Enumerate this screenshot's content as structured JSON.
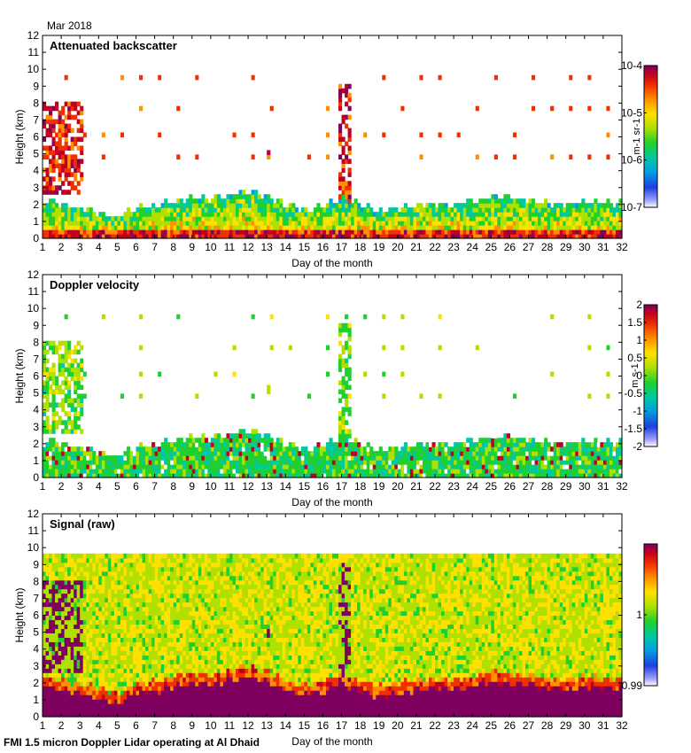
{
  "header": {
    "month_label": "Mar 2018"
  },
  "footer": {
    "caption": "FMI 1.5 micron Doppler Lidar operating at Al Dhaid"
  },
  "colors": {
    "colormap": [
      "#ffffff",
      "#9f9fff",
      "#1f3fdf",
      "#00a0e0",
      "#00c8a0",
      "#20d030",
      "#b0e000",
      "#ffe000",
      "#ff9000",
      "#f03000",
      "#c00020",
      "#800060"
    ]
  },
  "chart_data": [
    {
      "type": "heatmap",
      "title": "Attenuated backscatter",
      "xlabel": "Day of the month",
      "ylabel": "Height (km)",
      "xlim": [
        1,
        32
      ],
      "ylim": [
        0,
        12
      ],
      "xticks": [
        "1",
        "2",
        "3",
        "4",
        "5",
        "6",
        "7",
        "8",
        "9",
        "10",
        "11",
        "12",
        "13",
        "14",
        "15",
        "16",
        "17",
        "18",
        "19",
        "20",
        "21",
        "22",
        "23",
        "24",
        "25",
        "26",
        "27",
        "28",
        "29",
        "30",
        "31",
        "32"
      ],
      "yticks": [
        "0",
        "1",
        "2",
        "3",
        "4",
        "5",
        "6",
        "7",
        "8",
        "9",
        "10",
        "11",
        "12"
      ],
      "colorbar": {
        "scale": "log",
        "range": [
          1e-07,
          0.0001
        ],
        "tick_labels": [
          "10-4",
          "10-5",
          "10-6",
          "10-7"
        ],
        "unit": "m-1 sr-1"
      },
      "boundary_layer_top_km_by_day": [
        2.3,
        2.0,
        1.8,
        1.5,
        1.2,
        1.8,
        1.9,
        2.2,
        2.4,
        2.3,
        2.6,
        2.8,
        2.5,
        2.0,
        1.7,
        1.9,
        2.4,
        2.0,
        1.6,
        1.8,
        2.0,
        2.1,
        2.0,
        2.2,
        2.5,
        2.4,
        2.3,
        2.1,
        2.0,
        2.2,
        2.1
      ],
      "elevated_layers": [
        {
          "day_start": 1.0,
          "day_end": 3.1,
          "height_km": [
            2.5,
            8.2
          ],
          "intensity": "high"
        },
        {
          "day_start": 13.0,
          "day_end": 13.2,
          "height_km": [
            4.8,
            5.4
          ],
          "intensity": "high"
        },
        {
          "day_start": 16.8,
          "day_end": 17.5,
          "height_km": [
            1.5,
            9.2
          ],
          "intensity": "high"
        }
      ],
      "sparse_echo_heights_km": [
        9.5,
        7.6,
        6.2,
        4.7
      ]
    },
    {
      "type": "heatmap",
      "title": "Doppler velocity",
      "xlabel": "Day of the month",
      "ylabel": "Height (km)",
      "xlim": [
        1,
        32
      ],
      "ylim": [
        0,
        12
      ],
      "xticks": [
        "1",
        "2",
        "3",
        "4",
        "5",
        "6",
        "7",
        "8",
        "9",
        "10",
        "11",
        "12",
        "13",
        "14",
        "15",
        "16",
        "17",
        "18",
        "19",
        "20",
        "21",
        "22",
        "23",
        "24",
        "25",
        "26",
        "27",
        "28",
        "29",
        "30",
        "31",
        "32"
      ],
      "yticks": [
        "0",
        "1",
        "2",
        "3",
        "4",
        "5",
        "6",
        "7",
        "8",
        "9",
        "10",
        "11",
        "12"
      ],
      "colorbar": {
        "scale": "linear",
        "range": [
          -2,
          2
        ],
        "tick_labels": [
          "2",
          "1.5",
          "1",
          "0.5",
          "0",
          "-0.5",
          "-1",
          "-1.5",
          "-2"
        ],
        "unit": "m s-1"
      }
    },
    {
      "type": "heatmap",
      "title": "Signal (raw)",
      "xlabel": "Day of the month",
      "ylabel": "Height (km)",
      "xlim": [
        1,
        32
      ],
      "ylim": [
        0,
        12
      ],
      "xticks": [
        "1",
        "2",
        "3",
        "4",
        "5",
        "6",
        "7",
        "8",
        "9",
        "10",
        "11",
        "12",
        "13",
        "14",
        "15",
        "16",
        "17",
        "18",
        "19",
        "20",
        "21",
        "22",
        "23",
        "24",
        "25",
        "26",
        "27",
        "28",
        "29",
        "30",
        "31",
        "32"
      ],
      "yticks": [
        "0",
        "1",
        "2",
        "3",
        "4",
        "5",
        "6",
        "7",
        "8",
        "9",
        "10",
        "11",
        "12"
      ],
      "data_top_km": 9.6,
      "colorbar": {
        "scale": "linear",
        "range": [
          0.99,
          1.01
        ],
        "tick_labels": [
          "1",
          "0.99"
        ],
        "unit": ""
      }
    }
  ]
}
